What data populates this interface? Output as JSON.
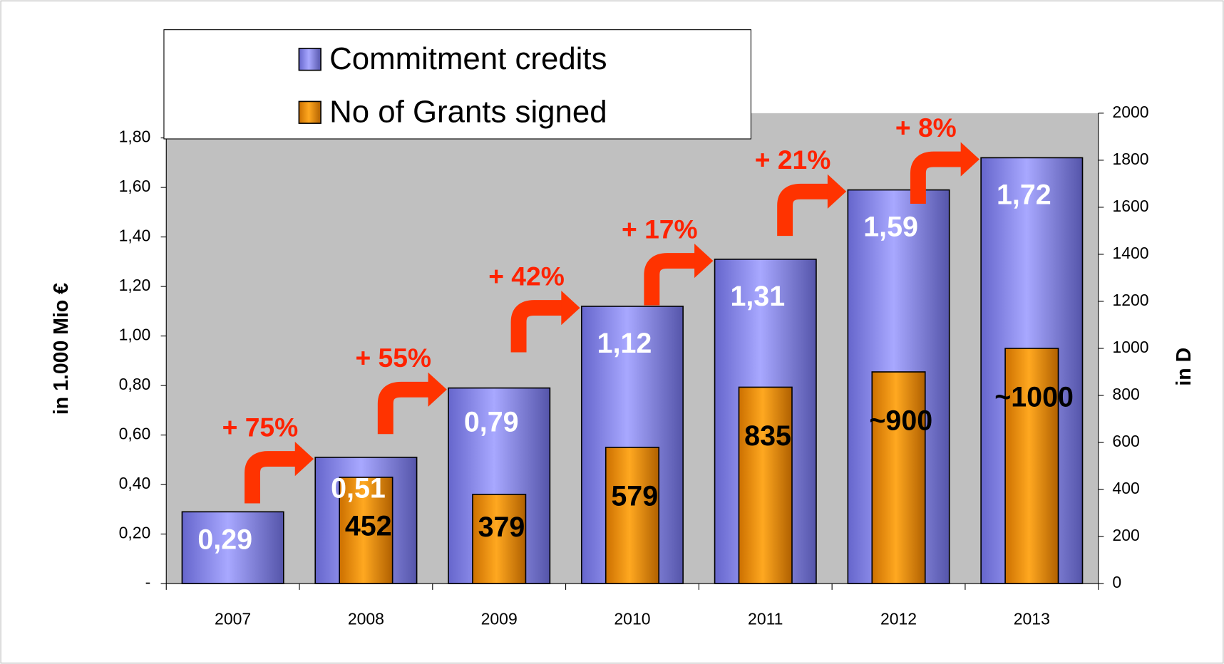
{
  "chart_data": {
    "type": "bar",
    "categories": [
      "2007",
      "2008",
      "2009",
      "2010",
      "2011",
      "2012",
      "2013"
    ],
    "series": [
      {
        "name": "Commitment credits",
        "color": "#9999ff",
        "axis": "y",
        "values": [
          0.29,
          0.51,
          0.79,
          1.12,
          1.31,
          1.59,
          1.72
        ],
        "value_labels": [
          "0,29",
          "0,51",
          "0,79",
          "1,12",
          "1,31",
          "1,59",
          "1,72"
        ]
      },
      {
        "name": "No of Grants signed",
        "color": "#ff9900",
        "axis": "y2",
        "values": [
          null,
          452,
          379,
          579,
          835,
          900,
          1000
        ],
        "value_labels": [
          null,
          "452",
          "379",
          "579",
          "835",
          "~900",
          "~1000"
        ]
      }
    ],
    "ylabel": "in 1.000 Mio €",
    "y2label": "in D",
    "ylim": [
      0,
      1.9
    ],
    "yticks": [
      {
        "value": 0,
        "label": "-"
      },
      {
        "value": 0.2,
        "label": "0,20"
      },
      {
        "value": 0.4,
        "label": "0,40"
      },
      {
        "value": 0.6,
        "label": "0,60"
      },
      {
        "value": 0.8,
        "label": "0,80"
      },
      {
        "value": 1.0,
        "label": "1,00"
      },
      {
        "value": 1.2,
        "label": "1,20"
      },
      {
        "value": 1.4,
        "label": "1,40"
      },
      {
        "value": 1.6,
        "label": "1,60"
      },
      {
        "value": 1.8,
        "label": "1,80"
      }
    ],
    "y2lim": [
      0,
      2000
    ],
    "y2ticks": [
      0,
      200,
      400,
      600,
      800,
      1000,
      1200,
      1400,
      1600,
      1800,
      2000
    ],
    "annotations": [
      "+ 75%",
      "+ 55%",
      "+ 42%",
      "+ 17%",
      "+ 21%",
      "+ 8%"
    ],
    "legend": "top-left",
    "grid": false
  }
}
